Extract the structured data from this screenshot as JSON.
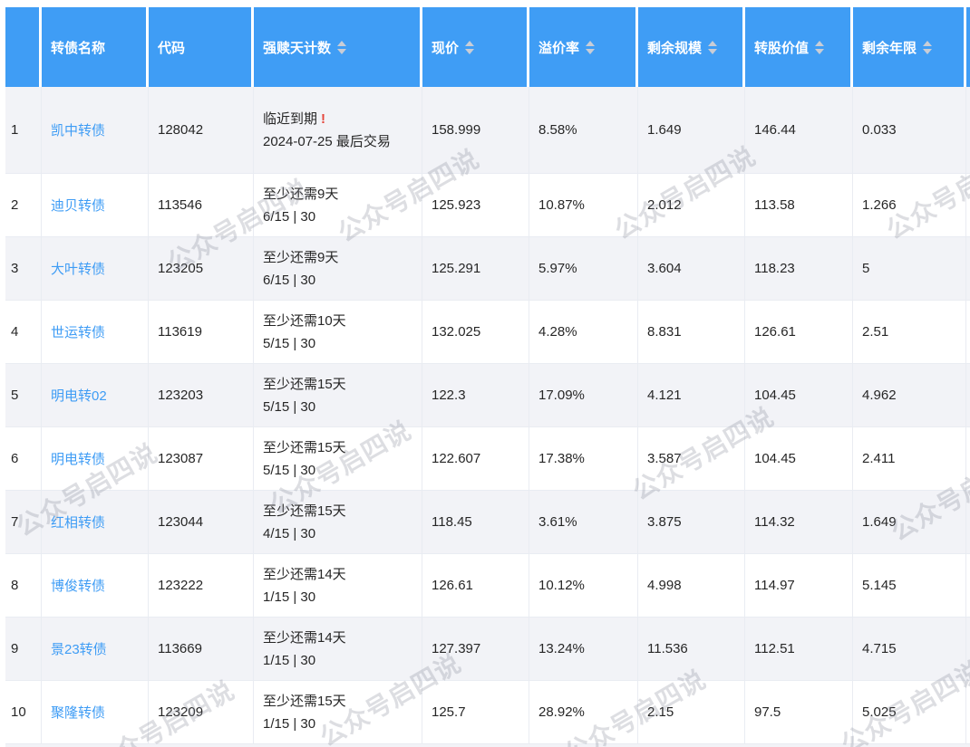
{
  "colors": {
    "header_bg": "#3F9DF5",
    "link": "#3E9CF5",
    "alert_red": "#E5443A",
    "row_alt_bg": "#F2F3F7",
    "border": "#E9ECF2",
    "sort_icon": "#C9CDD6"
  },
  "watermark": {
    "text": "公众号启四说"
  },
  "table": {
    "columns": [
      {
        "id": "index",
        "label": "",
        "sortable": false
      },
      {
        "id": "name",
        "label": "转债名称",
        "sortable": false
      },
      {
        "id": "code",
        "label": "代码",
        "sortable": false
      },
      {
        "id": "redemption",
        "label": "强赎天计数",
        "sortable": true
      },
      {
        "id": "price",
        "label": "现价",
        "sortable": true
      },
      {
        "id": "premium",
        "label": "溢价率",
        "sortable": true
      },
      {
        "id": "remaining_size",
        "label": "剩余规模",
        "sortable": true
      },
      {
        "id": "conversion_value",
        "label": "转股价值",
        "sortable": true
      },
      {
        "id": "remaining_years",
        "label": "剩余年限",
        "sortable": true
      }
    ],
    "rows": [
      {
        "index": "1",
        "name": "凯中转债",
        "code": "128042",
        "redemption_line1": "临近到期",
        "redemption_alert": "!",
        "redemption_line2": "2024-07-25 最后交易",
        "price": "158.999",
        "premium": "8.58%",
        "remaining_size": "1.649",
        "conversion_value": "146.44",
        "remaining_years": "0.033"
      },
      {
        "index": "2",
        "name": "迪贝转债",
        "code": "113546",
        "redemption_line1": "至少还需9天",
        "redemption_alert": "",
        "redemption_line2": "6/15 | 30",
        "price": "125.923",
        "premium": "10.87%",
        "remaining_size": "2.012",
        "conversion_value": "113.58",
        "remaining_years": "1.266"
      },
      {
        "index": "3",
        "name": "大叶转债",
        "code": "123205",
        "redemption_line1": "至少还需9天",
        "redemption_alert": "",
        "redemption_line2": "6/15 | 30",
        "price": "125.291",
        "premium": "5.97%",
        "remaining_size": "3.604",
        "conversion_value": "118.23",
        "remaining_years": "5"
      },
      {
        "index": "4",
        "name": "世运转债",
        "code": "113619",
        "redemption_line1": "至少还需10天",
        "redemption_alert": "",
        "redemption_line2": "5/15 | 30",
        "price": "132.025",
        "premium": "4.28%",
        "remaining_size": "8.831",
        "conversion_value": "126.61",
        "remaining_years": "2.51"
      },
      {
        "index": "5",
        "name": "明电转02",
        "code": "123203",
        "redemption_line1": "至少还需15天",
        "redemption_alert": "",
        "redemption_line2": "5/15 | 30",
        "price": "122.3",
        "premium": "17.09%",
        "remaining_size": "4.121",
        "conversion_value": "104.45",
        "remaining_years": "4.962"
      },
      {
        "index": "6",
        "name": "明电转债",
        "code": "123087",
        "redemption_line1": "至少还需15天",
        "redemption_alert": "",
        "redemption_line2": "5/15 | 30",
        "price": "122.607",
        "premium": "17.38%",
        "remaining_size": "3.587",
        "conversion_value": "104.45",
        "remaining_years": "2.411"
      },
      {
        "index": "7",
        "name": "红相转债",
        "code": "123044",
        "redemption_line1": "至少还需15天",
        "redemption_alert": "",
        "redemption_line2": "4/15 | 30",
        "price": "118.45",
        "premium": "3.61%",
        "remaining_size": "3.875",
        "conversion_value": "114.32",
        "remaining_years": "1.649"
      },
      {
        "index": "8",
        "name": "博俊转债",
        "code": "123222",
        "redemption_line1": "至少还需14天",
        "redemption_alert": "",
        "redemption_line2": "1/15 | 30",
        "price": "126.61",
        "premium": "10.12%",
        "remaining_size": "4.998",
        "conversion_value": "114.97",
        "remaining_years": "5.145"
      },
      {
        "index": "9",
        "name": "景23转债",
        "code": "113669",
        "redemption_line1": "至少还需14天",
        "redemption_alert": "",
        "redemption_line2": "1/15 | 30",
        "price": "127.397",
        "premium": "13.24%",
        "remaining_size": "11.536",
        "conversion_value": "112.51",
        "remaining_years": "4.715"
      },
      {
        "index": "10",
        "name": "聚隆转债",
        "code": "123209",
        "redemption_line1": "至少还需15天",
        "redemption_alert": "",
        "redemption_line2": "1/15 | 30",
        "price": "125.7",
        "premium": "28.92%",
        "remaining_size": "2.15",
        "conversion_value": "97.5",
        "remaining_years": "5.025"
      }
    ]
  }
}
